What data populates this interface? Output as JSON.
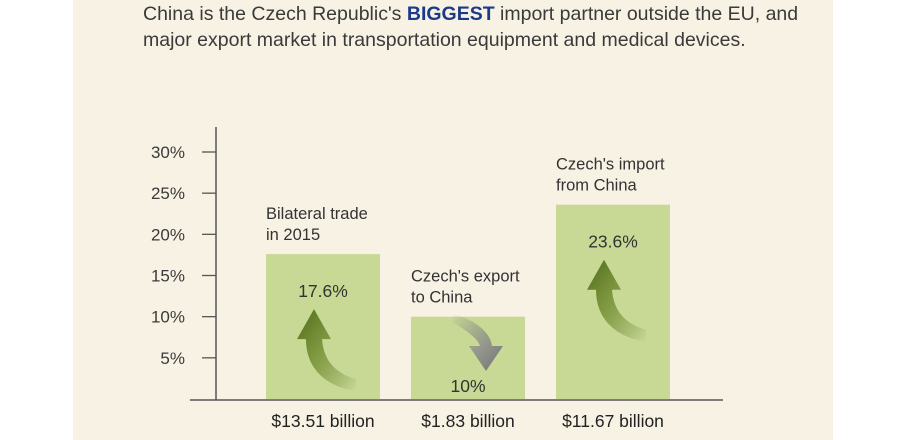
{
  "intro": {
    "before": "China is the Czech Republic's ",
    "highlight": "BIGGEST",
    "after": " import partner outside the EU, and major export market in transportation equipment and medical devices."
  },
  "colors": {
    "background": "#f7f2e3",
    "bar": "#c8d996",
    "highlight": "#1d3a8a",
    "arrow_up": "#5a7320",
    "arrow_down": "#7a7a7a"
  },
  "chart_data": {
    "type": "bar",
    "ylim": [
      0,
      30
    ],
    "yticks": [
      "5%",
      "10%",
      "15%",
      "20%",
      "25%",
      "30%"
    ],
    "ytick_values": [
      5,
      10,
      15,
      20,
      25,
      30
    ],
    "grid": false,
    "categories": [
      {
        "line1": "Bilateral trade",
        "line2": "in 2015"
      },
      {
        "line1": "Czech's export",
        "line2": "to China"
      },
      {
        "line1": "Czech's import",
        "line2": "from China"
      }
    ],
    "values": [
      17.6,
      10,
      23.6
    ],
    "growth_labels": [
      "17.6%",
      "10%",
      "23.6%"
    ],
    "direction_icons": [
      "arrow-up-curved-icon",
      "arrow-down-curved-icon",
      "arrow-up-curved-icon"
    ],
    "value_labels": [
      "$13.51 billion",
      "$1.83 billion",
      "$11.67 billion"
    ]
  }
}
